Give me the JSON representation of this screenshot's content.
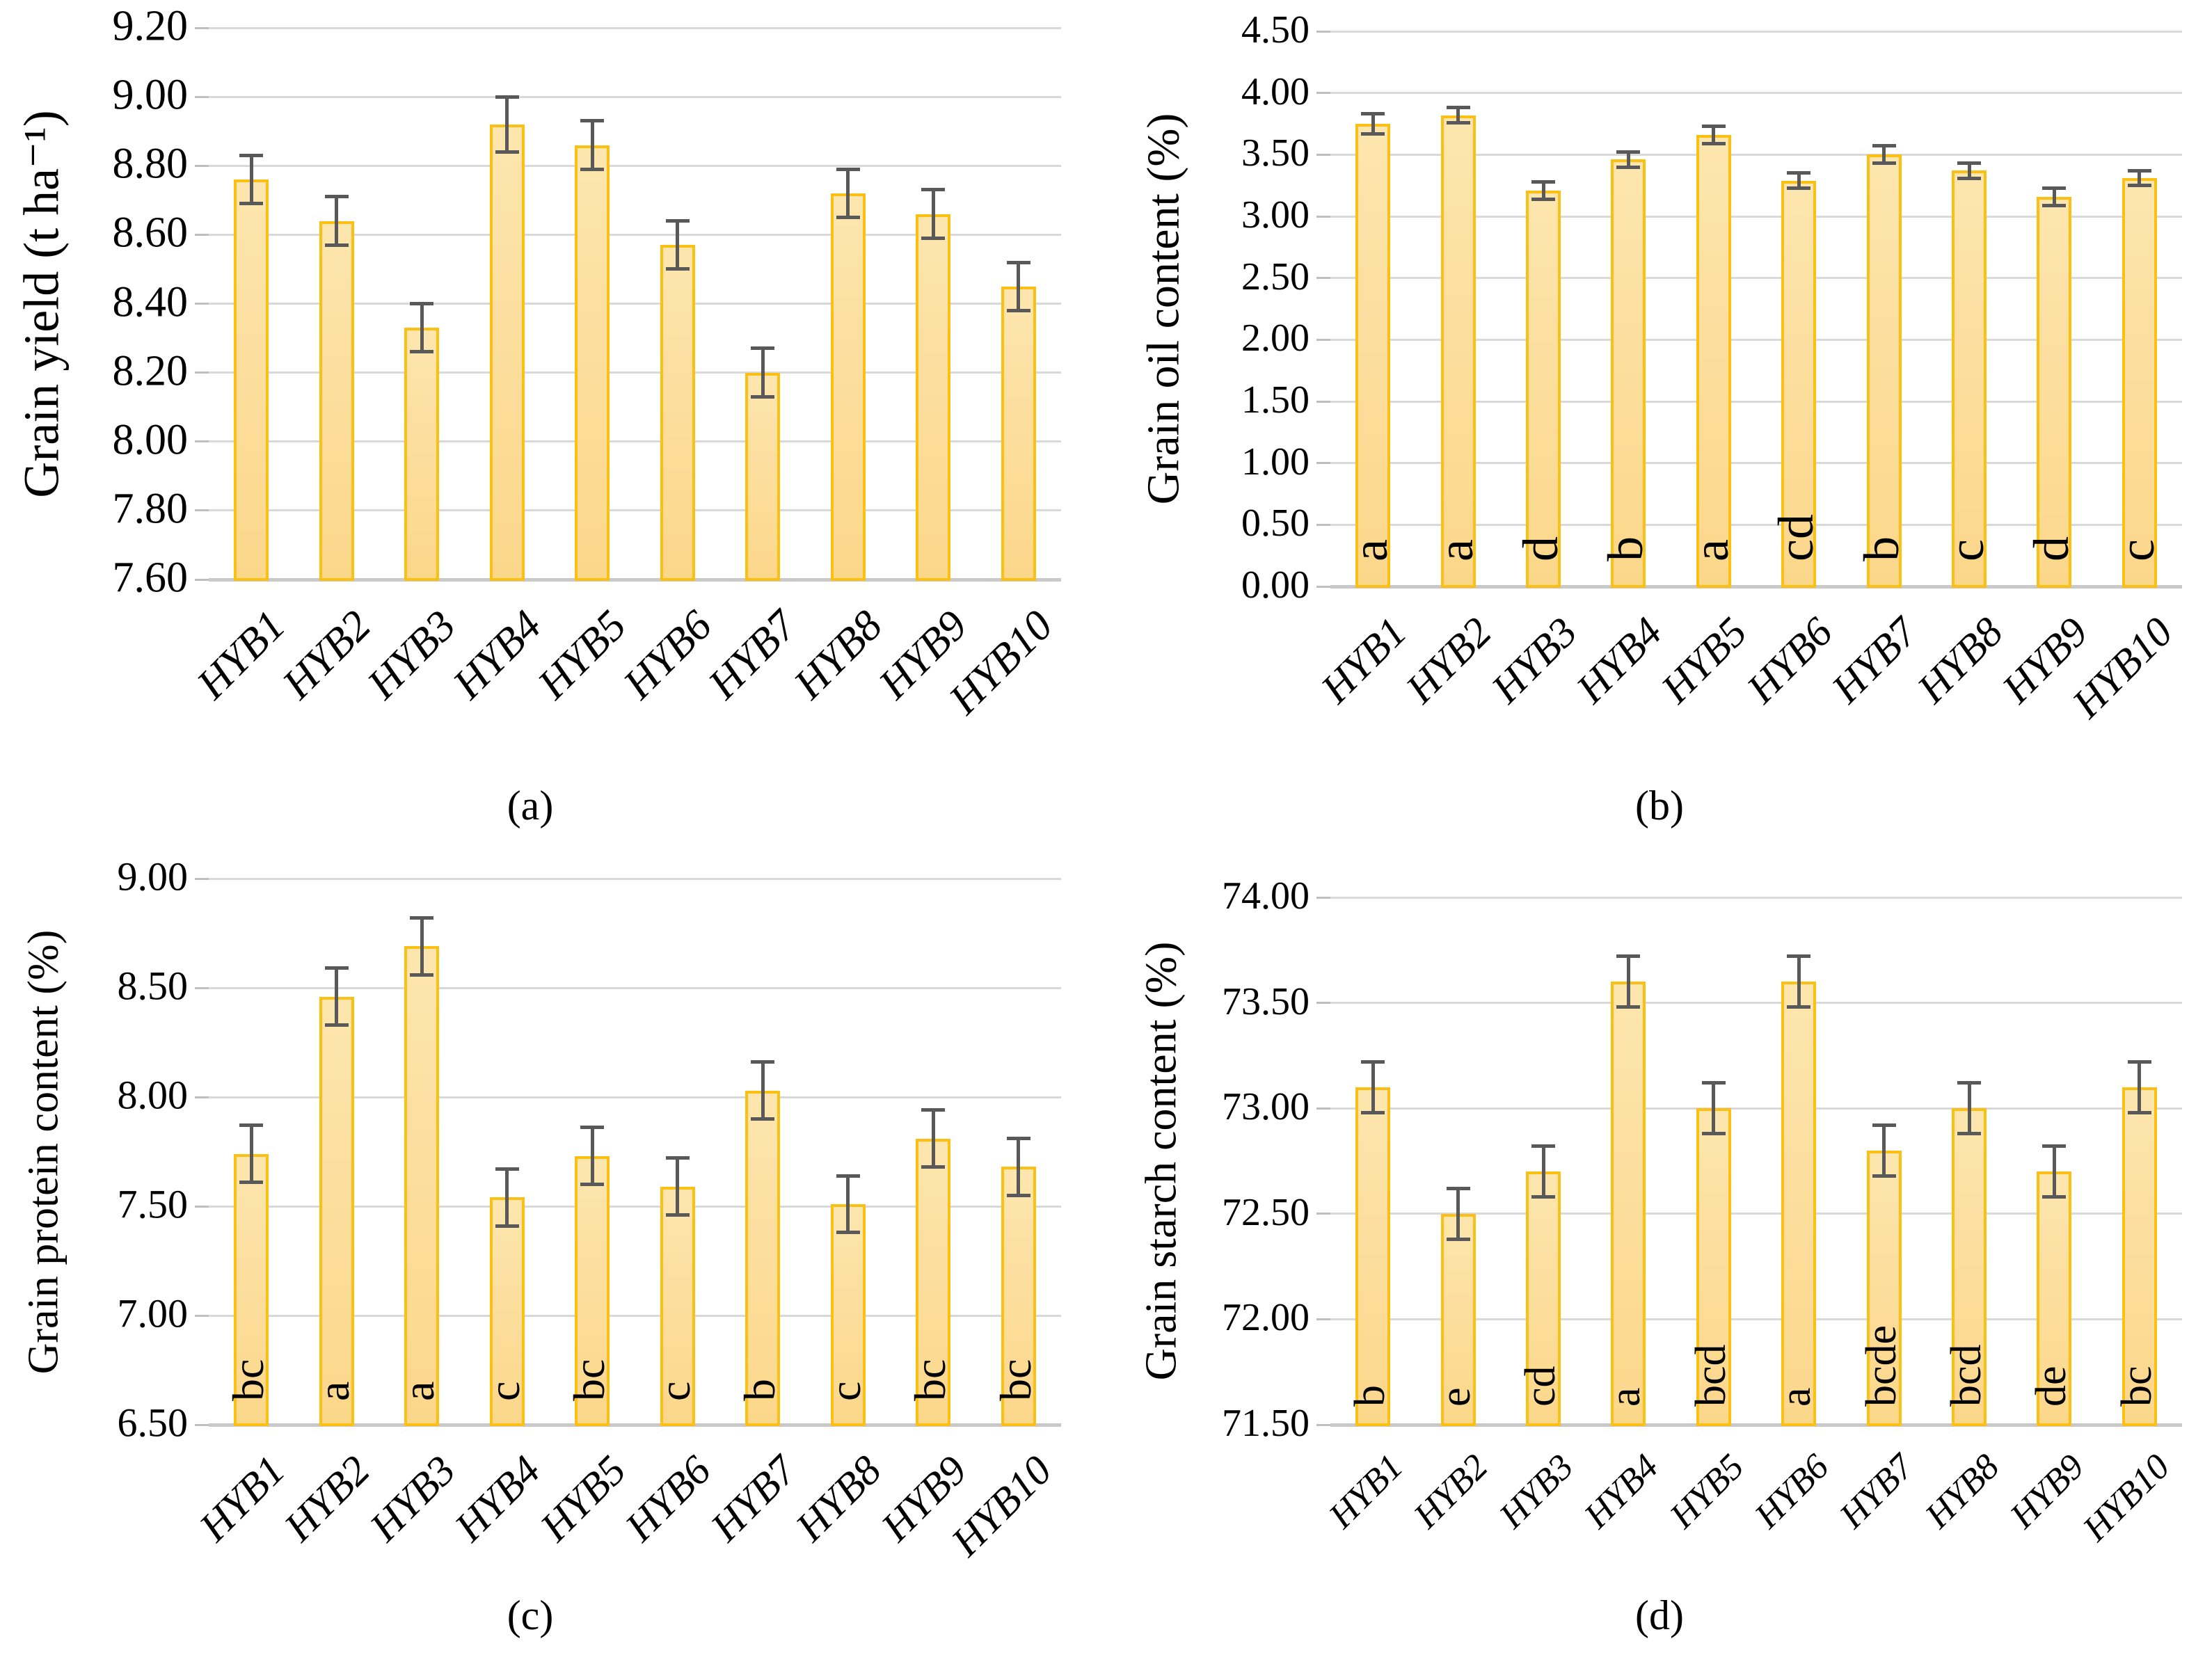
{
  "figure": {
    "description_visible_text_only": "Four bar chart panels labelled (a), (b), (c), (d) comparing ten maize hybrids",
    "colors": {
      "bar_fill_top": "#fde6ae",
      "bar_fill_bottom": "#fbd78a",
      "bar_border": "#fcbf13",
      "error_bar": "#595959",
      "gridline": "#d9d9d9",
      "baseline": "#c9c9c9",
      "tick_mark": "#bfbfbf",
      "text": "#000000",
      "background": "#ffffff"
    }
  },
  "chart_data": [
    {
      "type": "bar",
      "panel_label": "(a)",
      "title": "",
      "xlabel": "",
      "ylabel": "Grain yield (t ha⁻¹)",
      "categories": [
        "HYB1",
        "HYB2",
        "HYB3",
        "HYB4",
        "HYB5",
        "HYB6",
        "HYB7",
        "HYB8",
        "HYB9",
        "HYB10"
      ],
      "values": [
        8.76,
        8.64,
        8.33,
        8.92,
        8.86,
        8.57,
        8.2,
        8.72,
        8.66,
        8.45
      ],
      "errors": [
        0.07,
        0.07,
        0.07,
        0.08,
        0.07,
        0.07,
        0.07,
        0.07,
        0.07,
        0.07
      ],
      "sig_letters": null,
      "ylim": [
        7.6,
        9.2
      ],
      "ytick_step": 0.2,
      "ytick_labels": [
        "9.20",
        "9.00",
        "8.80",
        "8.60",
        "8.40",
        "8.20",
        "8.00",
        "7.80",
        "7.60"
      ],
      "grid": true,
      "legend": null
    },
    {
      "type": "bar",
      "panel_label": "(b)",
      "title": "",
      "xlabel": "",
      "ylabel": "Grain oil content (%)",
      "categories": [
        "HYB1",
        "HYB2",
        "HYB3",
        "HYB4",
        "HYB5",
        "HYB6",
        "HYB7",
        "HYB8",
        "HYB9",
        "HYB10"
      ],
      "values": [
        3.75,
        3.82,
        3.21,
        3.46,
        3.66,
        3.29,
        3.5,
        3.37,
        3.16,
        3.31
      ],
      "errors": [
        0.08,
        0.06,
        0.07,
        0.06,
        0.07,
        0.06,
        0.07,
        0.06,
        0.07,
        0.06
      ],
      "sig_letters": [
        "a",
        "a",
        "d",
        "b",
        "a",
        "cd",
        "b",
        "c",
        "d",
        "c"
      ],
      "ylim": [
        0.0,
        4.5
      ],
      "ytick_step": 0.5,
      "ytick_labels": [
        "4.50",
        "4.00",
        "3.50",
        "3.00",
        "2.50",
        "2.00",
        "1.50",
        "1.00",
        "0.50",
        "0.00"
      ],
      "grid": true,
      "legend": null
    },
    {
      "type": "bar",
      "panel_label": "(c)",
      "title": "",
      "xlabel": "",
      "ylabel": "Grain protein content (%)",
      "categories": [
        "HYB1",
        "HYB2",
        "HYB3",
        "HYB4",
        "HYB5",
        "HYB6",
        "HYB7",
        "HYB8",
        "HYB9",
        "HYB10"
      ],
      "values": [
        7.74,
        8.46,
        8.69,
        7.54,
        7.73,
        7.59,
        8.03,
        7.51,
        7.81,
        7.68
      ],
      "errors": [
        0.13,
        0.13,
        0.13,
        0.13,
        0.13,
        0.13,
        0.13,
        0.13,
        0.13,
        0.13
      ],
      "sig_letters": [
        "bc",
        "a",
        "a",
        "c",
        "bc",
        "c",
        "b",
        "c",
        "bc",
        "bc"
      ],
      "ylim": [
        6.5,
        9.0
      ],
      "ytick_step": 0.5,
      "ytick_labels": [
        "9.00",
        "8.50",
        "8.00",
        "7.50",
        "7.00",
        "6.50"
      ],
      "grid": true,
      "legend": null
    },
    {
      "type": "bar",
      "panel_label": "(d)",
      "title": "",
      "xlabel": "",
      "ylabel": "Grain starch content (%)",
      "categories": [
        "HYB1",
        "HYB2",
        "HYB3",
        "HYB4",
        "HYB5",
        "HYB6",
        "HYB7",
        "HYB8",
        "HYB9",
        "HYB10"
      ],
      "values": [
        73.1,
        72.5,
        72.7,
        73.6,
        73.0,
        73.6,
        72.8,
        73.0,
        72.7,
        73.1
      ],
      "errors": [
        0.12,
        0.12,
        0.12,
        0.12,
        0.12,
        0.12,
        0.12,
        0.12,
        0.12,
        0.12
      ],
      "sig_letters": [
        "b",
        "e",
        "cd",
        "a",
        "bcd",
        "a",
        "bcde",
        "bcd",
        "de",
        "bc"
      ],
      "ylim": [
        71.5,
        74.0
      ],
      "ytick_step": 0.5,
      "ytick_labels": [
        "74.00",
        "73.50",
        "73.00",
        "72.50",
        "72.00",
        "71.50"
      ],
      "grid": true,
      "legend": null
    }
  ]
}
